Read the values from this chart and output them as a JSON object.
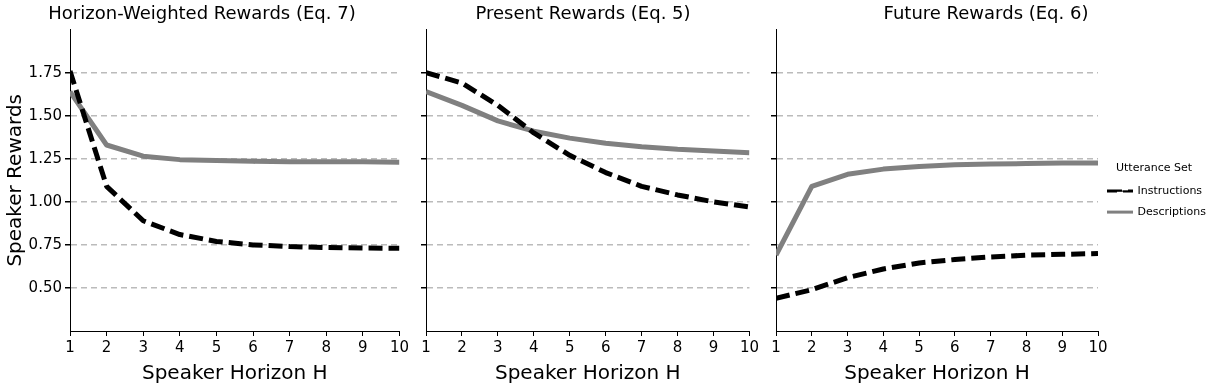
{
  "chart_data": [
    {
      "type": "line",
      "title": "Horizon-Weighted Rewards (Eq. 7)",
      "xlabel": "Speaker Horizon H",
      "ylabel": "Speaker Rewards",
      "x": [
        1,
        2,
        3,
        4,
        5,
        6,
        7,
        8,
        9,
        10
      ],
      "xlim": [
        1,
        10
      ],
      "xticks": [
        1,
        2,
        3,
        4,
        5,
        6,
        7,
        8,
        9,
        10
      ],
      "ylim": [
        0.25,
        2.0
      ],
      "yticks": [
        {
          "value": 0.5,
          "label": "0.50"
        },
        0.75,
        {
          "value": 1.0,
          "label": "1.00"
        },
        1.25,
        {
          "value": 1.5,
          "label": "1.50"
        },
        1.75
      ],
      "grid": "y",
      "marker": "none",
      "series": [
        {
          "color": "#000000",
          "line_style": "dashed",
          "values": [
            1.76,
            1.09,
            0.89,
            0.81,
            0.77,
            0.75,
            0.74,
            0.735,
            0.732,
            0.73
          ]
        },
        {
          "color": "#808080",
          "line_style": "solid",
          "values": [
            1.64,
            1.33,
            1.265,
            1.245,
            1.24,
            1.235,
            1.233,
            1.232,
            1.232,
            1.23
          ]
        }
      ]
    },
    {
      "type": "line",
      "title": "Present Rewards (Eq. 5)",
      "xlabel": "Speaker Horizon H",
      "x": [
        1,
        2,
        3,
        4,
        5,
        6,
        7,
        8,
        9,
        10
      ],
      "xlim": [
        1,
        10
      ],
      "xticks": [
        1,
        2,
        3,
        4,
        5,
        6,
        7,
        8,
        9,
        10
      ],
      "ylim": [
        0.25,
        2.0
      ],
      "yticks": [
        0.5,
        0.75,
        1.0,
        1.25,
        1.5,
        1.75
      ],
      "grid": "y",
      "marker": "none",
      "tick_labels": "x",
      "series": [
        {
          "color": "#000000",
          "line_style": "dashed",
          "values": [
            1.75,
            1.69,
            1.56,
            1.4,
            1.27,
            1.17,
            1.09,
            1.04,
            1.0,
            0.97
          ]
        },
        {
          "color": "#808080",
          "line_style": "solid",
          "values": [
            1.64,
            1.56,
            1.47,
            1.41,
            1.37,
            1.34,
            1.32,
            1.305,
            1.295,
            1.285
          ]
        }
      ]
    },
    {
      "type": "line",
      "title": "Future Rewards (Eq. 6)",
      "xlabel": "Speaker Horizon H",
      "legend_title": "Utterance Set",
      "legend": "right",
      "x": [
        1,
        2,
        3,
        4,
        5,
        6,
        7,
        8,
        9,
        10
      ],
      "xlim": [
        1,
        10
      ],
      "xticks": [
        1,
        2,
        3,
        4,
        5,
        6,
        7,
        8,
        9,
        10
      ],
      "ylim": [
        0.25,
        2.0
      ],
      "yticks": [
        0.5,
        0.75,
        1.0,
        1.25,
        1.5,
        1.75
      ],
      "grid": "y",
      "marker": "none",
      "tick_labels": "x",
      "series": [
        {
          "name": "Instructions",
          "color": "#000000",
          "line_style": "dashed",
          "values": [
            0.44,
            0.49,
            0.56,
            0.61,
            0.645,
            0.665,
            0.68,
            0.69,
            0.695,
            0.7
          ]
        },
        {
          "name": "Descriptions",
          "color": "#808080",
          "line_style": "solid",
          "values": [
            0.69,
            1.09,
            1.16,
            1.19,
            1.205,
            1.215,
            1.22,
            1.222,
            1.225,
            1.225
          ]
        }
      ]
    }
  ]
}
